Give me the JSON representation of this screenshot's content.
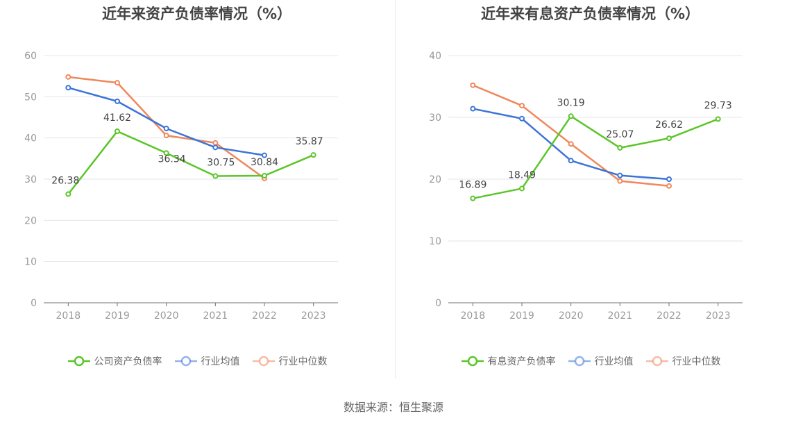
{
  "source_label": "数据来源：恒生聚源",
  "colors": {
    "green": "#5ac628",
    "blue": "#3b74d8",
    "orange": "#f0875a",
    "axis": "#999999",
    "grid": "#e6e6ef"
  },
  "chart_data": [
    {
      "type": "line",
      "title": "近年来资产负债率情况（%）",
      "categories": [
        "2018",
        "2019",
        "2020",
        "2021",
        "2022",
        "2023"
      ],
      "ylim": [
        0,
        60
      ],
      "yticks": [
        0,
        10,
        20,
        30,
        40,
        50,
        60
      ],
      "grid": true,
      "legend_position": "bottom-center",
      "series": [
        {
          "name": "公司资产负债率",
          "color": "#5ac628",
          "values": [
            26.38,
            41.62,
            36.34,
            30.75,
            30.84,
            35.87
          ],
          "labels": [
            "26.38",
            "41.62",
            "36.34",
            "30.75",
            "30.84",
            "35.87"
          ]
        },
        {
          "name": "行业均值",
          "color": "#3b74d8",
          "values": [
            52.2,
            48.9,
            42.3,
            37.7,
            35.8,
            null
          ]
        },
        {
          "name": "行业中位数",
          "color": "#f0875a",
          "values": [
            54.8,
            53.4,
            40.6,
            38.8,
            30.2,
            null
          ]
        }
      ]
    },
    {
      "type": "line",
      "title": "近年来有息资产负债率情况（%）",
      "categories": [
        "2018",
        "2019",
        "2020",
        "2021",
        "2022",
        "2023"
      ],
      "ylim": [
        0,
        40
      ],
      "yticks": [
        0,
        10,
        20,
        30,
        40
      ],
      "grid": true,
      "legend_position": "bottom-center",
      "series": [
        {
          "name": "有息资产负债率",
          "color": "#5ac628",
          "values": [
            16.89,
            18.49,
            30.19,
            25.07,
            26.62,
            29.73
          ],
          "labels": [
            "16.89",
            "18.49",
            "30.19",
            "25.07",
            "26.62",
            "29.73"
          ]
        },
        {
          "name": "行业均值",
          "color": "#3b74d8",
          "values": [
            31.4,
            29.8,
            23.0,
            20.6,
            20.0,
            null
          ]
        },
        {
          "name": "行业中位数",
          "color": "#f0875a",
          "values": [
            35.2,
            31.9,
            25.7,
            19.7,
            18.9,
            null
          ]
        }
      ]
    }
  ]
}
